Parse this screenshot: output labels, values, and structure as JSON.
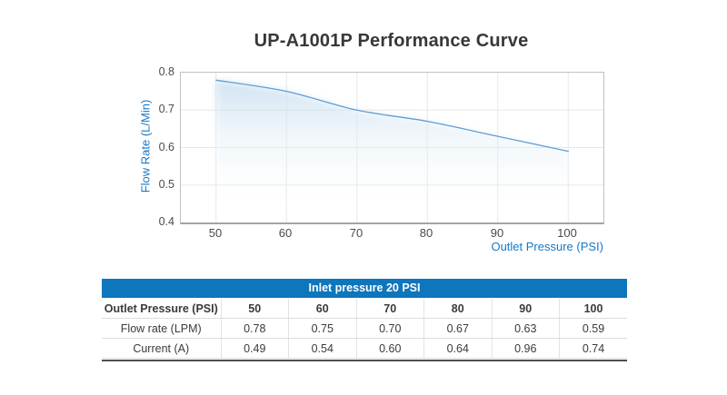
{
  "title": "UP-A1001P Performance Curve",
  "chart_data": {
    "type": "line",
    "title": "UP-A1001P Performance Curve",
    "xlabel": "Outlet Pressure (PSI)",
    "ylabel": "Flow Rate (L/Min)",
    "x": [
      50,
      60,
      70,
      80,
      90,
      100
    ],
    "series": [
      {
        "name": "Flow rate (LPM)",
        "values": [
          0.78,
          0.75,
          0.7,
          0.67,
          0.63,
          0.59
        ]
      }
    ],
    "xlim": [
      45,
      105
    ],
    "ylim": [
      0.4,
      0.8
    ],
    "x_ticks": [
      50,
      60,
      70,
      80,
      90,
      100
    ],
    "y_ticks": [
      "0.8",
      "0.7",
      "0.6",
      "0.5",
      "0.4"
    ],
    "grid": true,
    "grid_color": "#e8e8e8",
    "line_color": "#5f9dd4",
    "area_fill_top_color": "#bcd6ec",
    "legend_position": "none"
  },
  "table": {
    "title": "Inlet pressure 20 PSI",
    "header_bg": "#0d76bc",
    "highlight_color": "#e4eef7",
    "highlight_column": "70",
    "col_header_label": "Outlet Pressure (PSI)",
    "col_headers": [
      "50",
      "60",
      "70",
      "80",
      "90",
      "100"
    ],
    "rows": [
      {
        "label": "Flow rate (LPM)",
        "values": [
          "0.78",
          "0.75",
          "0.70",
          "0.67",
          "0.63",
          "0.59"
        ]
      },
      {
        "label": "Current (A)",
        "values": [
          "0.49",
          "0.54",
          "0.60",
          "0.64",
          "0.96",
          "0.74"
        ]
      }
    ]
  },
  "colors": {
    "accent_blue_text": "#1778c6",
    "header_bar_blue": "#0d76bc",
    "title_text": "#383838"
  }
}
